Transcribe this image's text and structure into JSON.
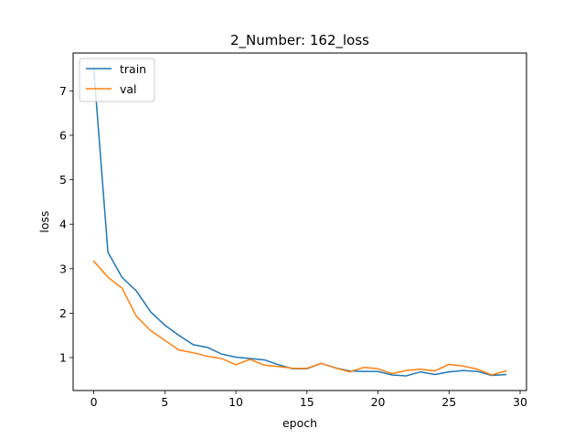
{
  "chart_data": {
    "type": "line",
    "title": "2_Number: 162_loss",
    "xlabel": "epoch",
    "ylabel": "loss",
    "xlim": [
      -1.45,
      30.45
    ],
    "ylim": [
      0.26,
      7.85
    ],
    "xticks": [
      0,
      5,
      10,
      15,
      20,
      25,
      30
    ],
    "yticks": [
      1,
      2,
      3,
      4,
      5,
      6,
      7
    ],
    "grid": false,
    "legend_position": "top-left",
    "x": [
      0,
      1,
      2,
      3,
      4,
      5,
      6,
      7,
      8,
      9,
      10,
      11,
      12,
      13,
      14,
      15,
      16,
      17,
      18,
      19,
      20,
      21,
      22,
      23,
      24,
      25,
      26,
      27,
      28,
      29
    ],
    "series": [
      {
        "name": "train",
        "color": "#1f77b4",
        "values": [
          7.5,
          3.37,
          2.8,
          2.5,
          2.03,
          1.73,
          1.5,
          1.29,
          1.23,
          1.08,
          1.01,
          0.98,
          0.95,
          0.84,
          0.75,
          0.75,
          0.87,
          0.77,
          0.7,
          0.69,
          0.69,
          0.61,
          0.59,
          0.68,
          0.62,
          0.68,
          0.71,
          0.69,
          0.6,
          0.62
        ]
      },
      {
        "name": "val",
        "color": "#ff7f0e",
        "values": [
          3.17,
          2.81,
          2.56,
          1.93,
          1.61,
          1.39,
          1.17,
          1.11,
          1.03,
          0.98,
          0.84,
          0.96,
          0.83,
          0.8,
          0.76,
          0.76,
          0.87,
          0.77,
          0.68,
          0.78,
          0.75,
          0.64,
          0.71,
          0.74,
          0.7,
          0.85,
          0.81,
          0.74,
          0.61,
          0.7
        ]
      }
    ]
  }
}
